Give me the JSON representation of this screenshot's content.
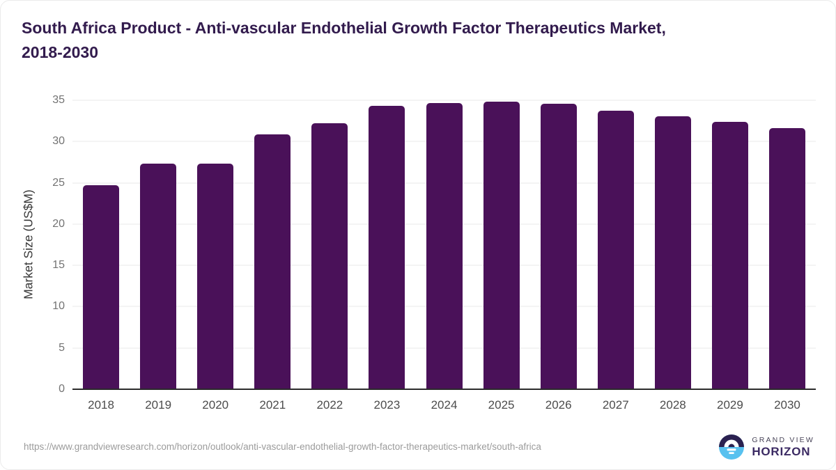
{
  "title": {
    "full": "South Africa Product - Anti-vascular Endothelial Growth Factor Therapeutics Market, 2018-2030",
    "line1": "South Africa Product - Anti-vascular Endothelial Growth Factor Therapeutics Market,",
    "line2": "2018-2030"
  },
  "chart_data": {
    "type": "bar",
    "title": "South Africa Product - Anti-vascular Endothelial Growth Factor Therapeutics Market, 2018-2030",
    "categories": [
      "2018",
      "2019",
      "2020",
      "2021",
      "2022",
      "2023",
      "2024",
      "2025",
      "2026",
      "2027",
      "2028",
      "2029",
      "2030"
    ],
    "values": [
      24.7,
      27.3,
      27.3,
      30.9,
      32.2,
      34.3,
      34.7,
      34.8,
      34.6,
      33.7,
      33.1,
      32.4,
      31.6
    ],
    "xlabel": "",
    "ylabel": "Market Size (US$M)",
    "ylim": [
      0,
      35
    ],
    "yticks": [
      0,
      5,
      10,
      15,
      20,
      25,
      30,
      35
    ],
    "grid": true,
    "legend": false,
    "bar_color": "#4a1159"
  },
  "footer": {
    "source_url": "https://www.grandviewresearch.com/horizon/outlook/anti-vascular-endothelial-growth-factor-therapeutics-market/south-africa"
  },
  "logo": {
    "top_text": "GRAND VIEW",
    "bottom_text": "HORIZON"
  },
  "colors": {
    "title": "#321b4d",
    "bar": "#4a1159",
    "logo_dark": "#2b2150",
    "logo_blue": "#58c1ef",
    "logo_purple": "#3b2a63"
  }
}
